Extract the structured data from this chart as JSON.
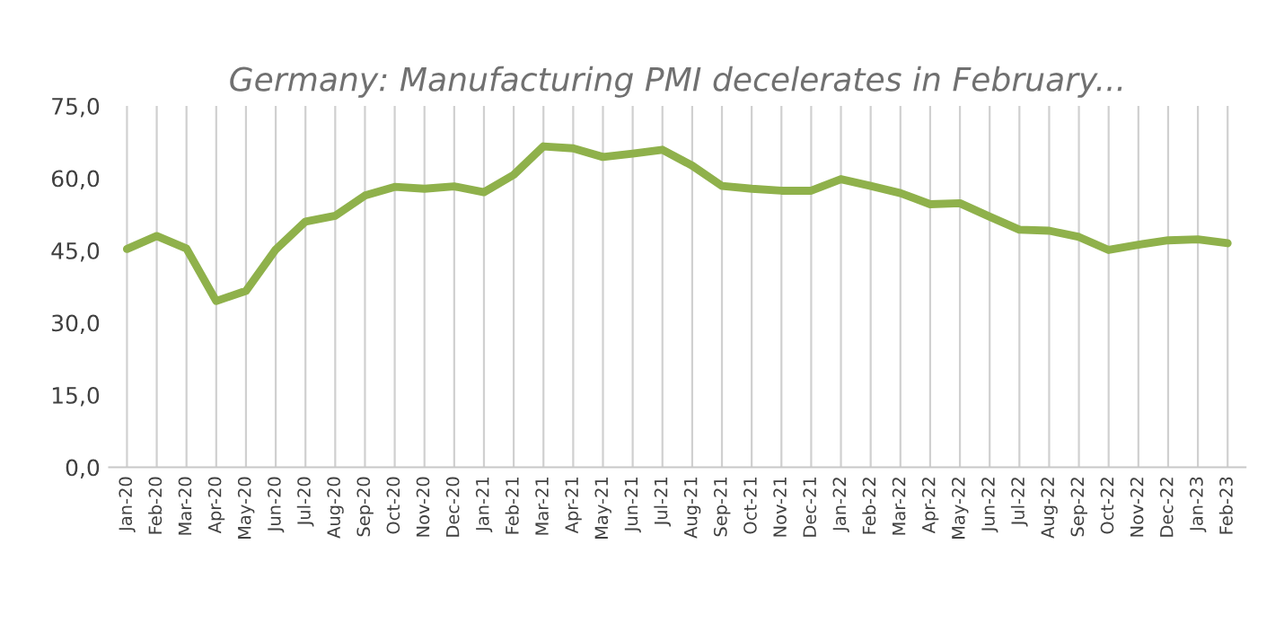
{
  "chart_data": {
    "type": "line",
    "title": "Germany: Manufacturing PMI decelerates in February...",
    "categories": [
      "Jan-20",
      "Feb-20",
      "Mar-20",
      "Apr-20",
      "May-20",
      "Jun-20",
      "Jul-20",
      "Aug-20",
      "Sep-20",
      "Oct-20",
      "Nov-20",
      "Dec-20",
      "Jan-21",
      "Feb-21",
      "Mar-21",
      "Apr-21",
      "May-21",
      "Jun-21",
      "Jul-21",
      "Aug-21",
      "Sep-21",
      "Oct-21",
      "Nov-21",
      "Dec-21",
      "Jan-22",
      "Feb-22",
      "Mar-22",
      "Apr-22",
      "May-22",
      "Jun-22",
      "Jul-22",
      "Aug-22",
      "Sep-22",
      "Oct-22",
      "Nov-22",
      "Dec-22",
      "Jan-23",
      "Feb-23"
    ],
    "series": [
      {
        "color": "#8fb14b",
        "values": [
          45.3,
          48.0,
          45.4,
          34.5,
          36.6,
          45.2,
          51.0,
          52.2,
          56.4,
          58.2,
          57.8,
          58.3,
          57.1,
          60.7,
          66.6,
          66.2,
          64.4,
          65.1,
          65.9,
          62.6,
          58.4,
          57.8,
          57.4,
          57.4,
          59.8,
          58.4,
          56.9,
          54.6,
          54.8,
          52.0,
          49.3,
          49.1,
          47.8,
          45.1,
          46.2,
          47.1,
          47.3,
          46.5
        ]
      }
    ],
    "ylim": [
      0,
      75
    ],
    "yticks": [
      {
        "value": 0,
        "label": "0,0"
      },
      {
        "value": 15,
        "label": "15,0"
      },
      {
        "value": 30,
        "label": "30,0"
      },
      {
        "value": 45,
        "label": "45,0"
      },
      {
        "value": 60,
        "label": "60,0"
      },
      {
        "value": 75,
        "label": "75,0"
      }
    ],
    "grid": "x",
    "marker": "none",
    "line_style": "solid"
  }
}
